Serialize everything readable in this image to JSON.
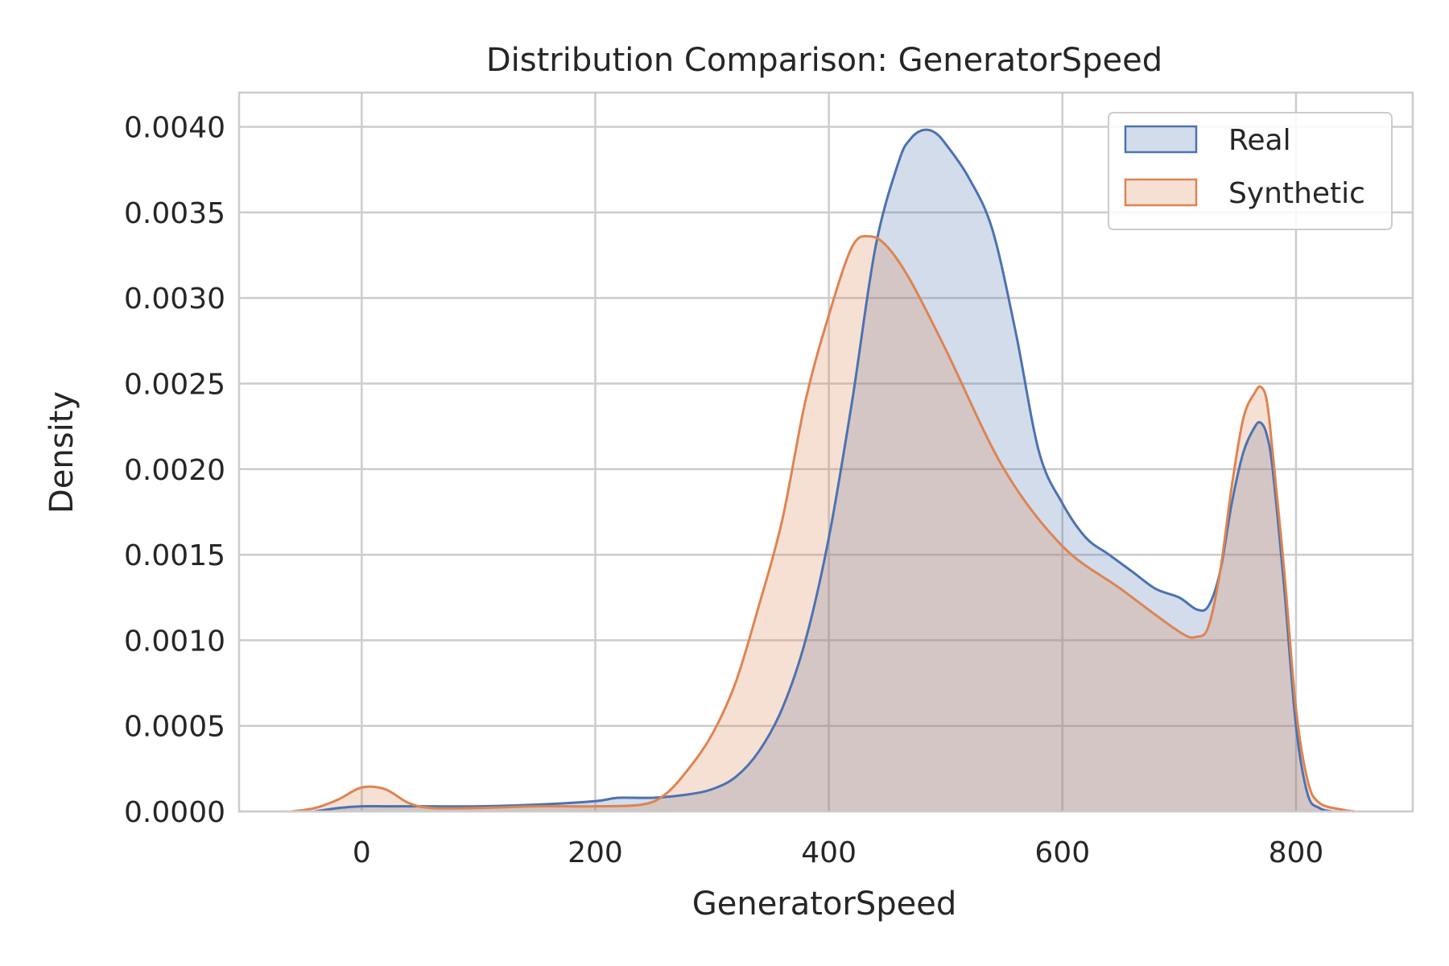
{
  "chart_data": {
    "type": "area",
    "title": "Distribution Comparison: GeneratorSpeed",
    "xlabel": "GeneratorSpeed",
    "ylabel": "Density",
    "xlim": [
      -105,
      900
    ],
    "ylim": [
      0,
      0.0042
    ],
    "x_ticks": [
      0,
      200,
      400,
      600,
      800
    ],
    "y_ticks": [
      0.0,
      0.0005,
      0.001,
      0.0015,
      0.002,
      0.0025,
      0.003,
      0.0035,
      0.004
    ],
    "x_tick_labels": [
      "0",
      "200",
      "400",
      "600",
      "800"
    ],
    "y_tick_labels": [
      "0.0000",
      "0.0005",
      "0.0010",
      "0.0015",
      "0.0020",
      "0.0025",
      "0.0030",
      "0.0035",
      "0.0040"
    ],
    "grid": true,
    "legend_position": "top-right",
    "series": [
      {
        "name": "Real",
        "color": "#4c72b0",
        "x": [
          -40,
          -20,
          0,
          20,
          40,
          100,
          150,
          200,
          220,
          250,
          280,
          300,
          320,
          340,
          360,
          380,
          400,
          420,
          440,
          460,
          470,
          480,
          490,
          500,
          520,
          540,
          560,
          580,
          600,
          620,
          640,
          660,
          680,
          700,
          715,
          725,
          735,
          745,
          755,
          765,
          770,
          775,
          780,
          790,
          800,
          810,
          820,
          830
        ],
        "y": [
          0.0,
          2e-05,
          3e-05,
          3e-05,
          3e-05,
          3e-05,
          4e-05,
          6e-05,
          8e-05,
          8e-05,
          0.0001,
          0.00013,
          0.0002,
          0.00035,
          0.0006,
          0.001,
          0.0016,
          0.0024,
          0.0033,
          0.0038,
          0.00393,
          0.00398,
          0.00397,
          0.0039,
          0.0037,
          0.0034,
          0.0028,
          0.0021,
          0.0018,
          0.0016,
          0.0015,
          0.0014,
          0.0013,
          0.00125,
          0.00118,
          0.0012,
          0.0014,
          0.0018,
          0.0021,
          0.00225,
          0.00227,
          0.0022,
          0.002,
          0.0013,
          0.0005,
          0.0001,
          2e-05,
          0.0
        ]
      },
      {
        "name": "Synthetic",
        "color": "#dd8452",
        "x": [
          -60,
          -40,
          -20,
          0,
          20,
          40,
          60,
          100,
          150,
          200,
          240,
          260,
          280,
          300,
          320,
          340,
          360,
          380,
          400,
          420,
          435,
          450,
          470,
          500,
          550,
          600,
          650,
          700,
          715,
          725,
          735,
          745,
          755,
          765,
          770,
          775,
          780,
          790,
          800,
          810,
          820,
          840,
          850
        ],
        "y": [
          0.0,
          2e-05,
          7e-05,
          0.00014,
          0.00013,
          5e-05,
          2e-05,
          2e-05,
          3e-05,
          3e-05,
          4e-05,
          0.0001,
          0.00025,
          0.00045,
          0.00075,
          0.0012,
          0.0017,
          0.0024,
          0.0029,
          0.0033,
          0.00336,
          0.0033,
          0.0031,
          0.0027,
          0.002,
          0.00155,
          0.0013,
          0.00105,
          0.00102,
          0.00108,
          0.0014,
          0.0019,
          0.0023,
          0.00245,
          0.00248,
          0.0024,
          0.0021,
          0.0014,
          0.0006,
          0.00018,
          5e-05,
          1e-05,
          0.0
        ]
      }
    ]
  }
}
